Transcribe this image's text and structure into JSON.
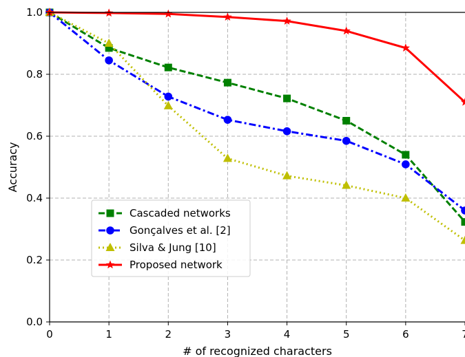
{
  "chart_data": {
    "type": "line",
    "title": "",
    "xlabel": "# of recognized characters",
    "ylabel": "Accuracy",
    "x": [
      0,
      1,
      2,
      3,
      4,
      5,
      6,
      7
    ],
    "xlim": [
      0,
      7
    ],
    "ylim": [
      0,
      1
    ],
    "x_ticks": [
      "0",
      "1",
      "2",
      "3",
      "4",
      "5",
      "6",
      "7"
    ],
    "y_ticks": [
      "0.0",
      "0.2",
      "0.4",
      "0.6",
      "0.8",
      "1.0"
    ],
    "grid": true,
    "legend_position": "lower-left",
    "series": [
      {
        "name": "Cascaded networks",
        "values": [
          1.0,
          0.885,
          0.822,
          0.773,
          0.722,
          0.65,
          0.54,
          0.323
        ],
        "color": "#008000",
        "dash": "dashed",
        "marker": "square"
      },
      {
        "name": "Gonçalves et al. [2]",
        "values": [
          1.0,
          0.845,
          0.728,
          0.653,
          0.616,
          0.585,
          0.509,
          0.36
        ],
        "color": "#0000ff",
        "dash": "dashdot",
        "marker": "circle"
      },
      {
        "name": "Silva & Jung [10]",
        "values": [
          1.0,
          0.9,
          0.698,
          0.528,
          0.472,
          0.441,
          0.4,
          0.263
        ],
        "color": "#bfbf00",
        "dash": "dotted",
        "marker": "triangle"
      },
      {
        "name": "Proposed network",
        "values": [
          1.0,
          0.998,
          0.995,
          0.985,
          0.972,
          0.94,
          0.885,
          0.71
        ],
        "color": "#ff0000",
        "dash": "solid",
        "marker": "star"
      }
    ]
  }
}
